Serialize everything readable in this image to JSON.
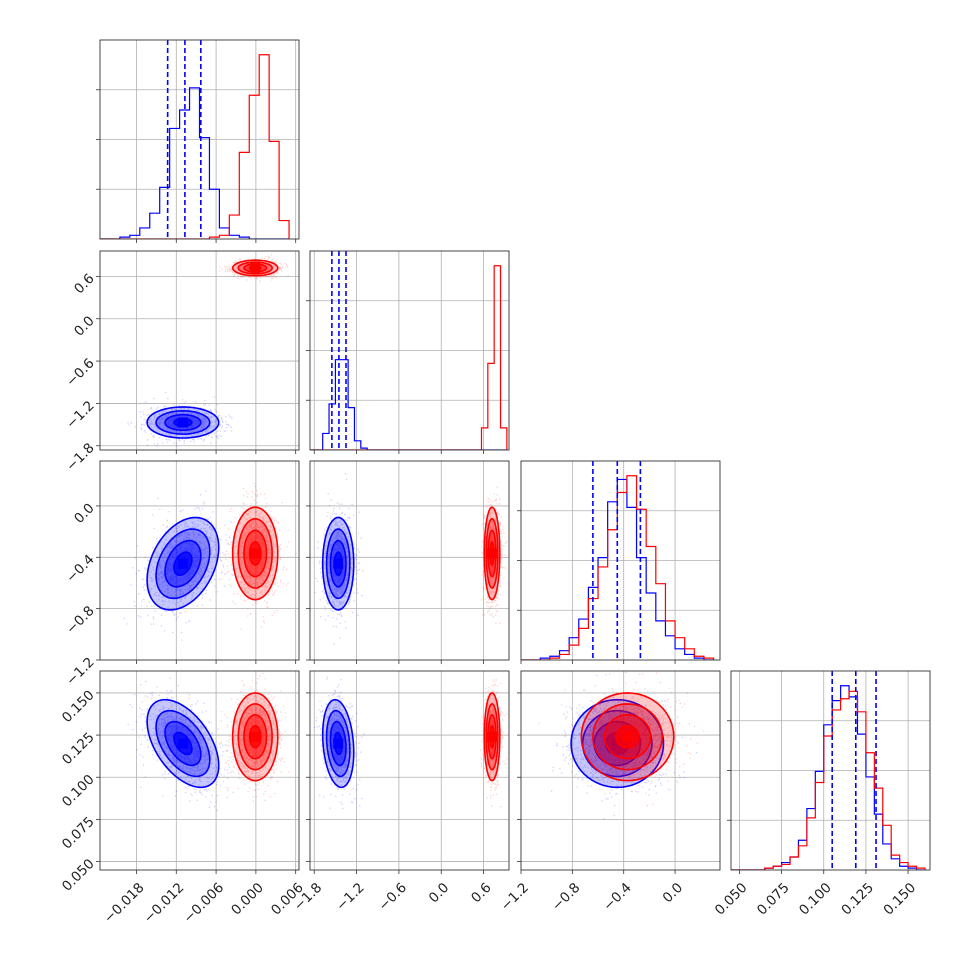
{
  "chart_data": {
    "type": "corner",
    "grid": true,
    "colors": {
      "series_a": "#0000ff",
      "series_b": "#ff0000",
      "grid": "#b0b0b0",
      "frame": "#333333"
    },
    "series": [
      {
        "color": "#0000ff"
      },
      {
        "color": "#ff0000"
      }
    ],
    "parameters": [
      {
        "range": [
          -0.0235,
          0.0065
        ],
        "ticks": [
          -0.018,
          -0.012,
          -0.006,
          0.0,
          0.006
        ],
        "tick_labels": [
          "−0.018",
          "−0.012",
          "−0.006",
          "0.000",
          "0.006"
        ]
      },
      {
        "range": [
          -1.86,
          0.96
        ],
        "ticks": [
          -1.8,
          -1.2,
          -0.6,
          0.0,
          0.6
        ],
        "tick_labels": [
          "−1.8",
          "−1.2",
          "−0.6",
          "0.0",
          "0.6"
        ]
      },
      {
        "range": [
          -1.2,
          0.35
        ],
        "ticks": [
          -1.2,
          -0.8,
          -0.4,
          0.0
        ],
        "tick_labels": [
          "−1.2",
          "−0.8",
          "−0.4",
          "0.0"
        ]
      },
      {
        "range": [
          0.045,
          0.163
        ],
        "ticks": [
          0.05,
          0.075,
          0.1,
          0.125,
          0.15
        ],
        "tick_labels": [
          "0.050",
          "0.075",
          "0.100",
          "0.125",
          "0.150"
        ]
      }
    ],
    "quantile_lines": [
      [
        -0.0133,
        -0.0107,
        -0.0083
      ],
      [
        -1.55,
        -1.45,
        -1.35
      ],
      [
        -0.64,
        -0.45,
        -0.27
      ],
      [
        0.105,
        0.119,
        0.131
      ]
    ],
    "histograms": [
      {
        "bin_edges": [
          -0.0235,
          -0.022,
          -0.0205,
          -0.019,
          -0.0175,
          -0.016,
          -0.0145,
          -0.013,
          -0.0115,
          -0.01,
          -0.0085,
          -0.007,
          -0.0055,
          -0.004,
          -0.0025,
          -0.001,
          0.0005,
          0.002,
          0.0035,
          0.005
        ],
        "series_a": [
          0,
          0,
          1,
          2,
          6,
          14,
          28,
          60,
          70,
          82,
          55,
          27,
          6,
          2,
          1,
          0,
          0,
          0,
          0
        ],
        "series_b": [
          0,
          0,
          0,
          0,
          0,
          0,
          0,
          0,
          0,
          0,
          0,
          1,
          2,
          13,
          47,
          78,
          100,
          53,
          10
        ]
      },
      {
        "bin_edges": [
          -1.86,
          -1.77,
          -1.68,
          -1.59,
          -1.5,
          -1.41,
          -1.32,
          -1.23,
          -1.14,
          -1.05,
          -0.96,
          -0.87,
          -0.78,
          -0.69,
          -0.6,
          -0.51,
          -0.42,
          -0.33,
          -0.24,
          -0.15,
          -0.06,
          0.03,
          0.12,
          0.21,
          0.3,
          0.39,
          0.48,
          0.57,
          0.66,
          0.75,
          0.84,
          0.93
        ],
        "series_a": [
          0,
          0,
          9,
          25,
          49,
          49,
          23,
          5,
          1,
          0,
          0,
          0,
          0,
          0,
          0,
          0,
          0,
          0,
          0,
          0,
          0,
          0,
          0,
          0,
          0,
          0,
          0,
          0,
          0,
          0,
          0
        ],
        "series_b": [
          0,
          0,
          0,
          0,
          0,
          0,
          0,
          0,
          0,
          0,
          0,
          0,
          0,
          0,
          0,
          0,
          0,
          0,
          0,
          0,
          0,
          0,
          0,
          0,
          0,
          0,
          0,
          12,
          47,
          100,
          12
        ]
      },
      {
        "bin_edges": [
          -1.2,
          -1.125,
          -1.05,
          -0.975,
          -0.9,
          -0.825,
          -0.75,
          -0.675,
          -0.6,
          -0.525,
          -0.45,
          -0.375,
          -0.3,
          -0.225,
          -0.15,
          -0.075,
          0.0,
          0.075,
          0.15,
          0.225,
          0.3
        ],
        "series_a": [
          0,
          0,
          1,
          2,
          5,
          12,
          22,
          39,
          55,
          85,
          97,
          82,
          55,
          36,
          21,
          13,
          6,
          3,
          1,
          0
        ],
        "series_b": [
          0,
          0,
          0,
          1,
          3,
          8,
          17,
          33,
          50,
          70,
          90,
          99,
          81,
          61,
          41,
          21,
          12,
          6,
          2,
          1
        ]
      },
      {
        "bin_edges": [
          0.045,
          0.05,
          0.055,
          0.06,
          0.065,
          0.07,
          0.075,
          0.08,
          0.085,
          0.09,
          0.095,
          0.1,
          0.105,
          0.11,
          0.115,
          0.12,
          0.125,
          0.13,
          0.135,
          0.14,
          0.145,
          0.15,
          0.155,
          0.16
        ],
        "series_a": [
          0,
          0,
          0,
          0,
          1,
          2,
          4,
          7,
          16,
          33,
          53,
          78,
          91,
          99,
          93,
          73,
          50,
          30,
          14,
          6,
          2,
          1,
          0
        ],
        "series_b": [
          0,
          0,
          0,
          0,
          1,
          2,
          3,
          7,
          13,
          28,
          47,
          72,
          86,
          92,
          96,
          85,
          63,
          44,
          24,
          8,
          4,
          2,
          1
        ]
      }
    ],
    "pair_densities": [
      {
        "row": 1,
        "col": 0,
        "series_a": {
          "mean": [
            -0.011,
            -1.47
          ],
          "sd": [
            0.0027,
            0.11
          ],
          "rho": 0.0
        },
        "series_b": {
          "mean": [
            -0.0001,
            0.72
          ],
          "sd": [
            0.0017,
            0.055
          ],
          "rho": 0.0
        }
      },
      {
        "row": 2,
        "col": 0,
        "series_a": {
          "mean": [
            -0.011,
            -0.45
          ],
          "sd": [
            0.0027,
            0.18
          ],
          "rho": 0.35
        },
        "series_b": {
          "mean": [
            -0.0001,
            -0.37
          ],
          "sd": [
            0.0017,
            0.18
          ],
          "rho": 0.0
        }
      },
      {
        "row": 2,
        "col": 1,
        "series_a": {
          "mean": [
            -1.46,
            -0.45
          ],
          "sd": [
            0.11,
            0.18
          ],
          "rho": 0.0
        },
        "series_b": {
          "mean": [
            0.72,
            -0.37
          ],
          "sd": [
            0.055,
            0.18
          ],
          "rho": 0.0
        }
      },
      {
        "row": 3,
        "col": 0,
        "series_a": {
          "mean": [
            -0.011,
            0.12
          ],
          "sd": [
            0.0027,
            0.013
          ],
          "rho": -0.5
        },
        "series_b": {
          "mean": [
            -0.0001,
            0.124
          ],
          "sd": [
            0.0017,
            0.013
          ],
          "rho": 0.0
        }
      },
      {
        "row": 3,
        "col": 1,
        "series_a": {
          "mean": [
            -1.46,
            0.12
          ],
          "sd": [
            0.11,
            0.013
          ],
          "rho": -0.2
        },
        "series_b": {
          "mean": [
            0.72,
            0.124
          ],
          "sd": [
            0.055,
            0.013
          ],
          "rho": 0.0
        }
      },
      {
        "row": 3,
        "col": 2,
        "series_a": {
          "mean": [
            -0.45,
            0.12
          ],
          "sd": [
            0.18,
            0.013
          ],
          "rho": 0.0
        },
        "series_b": {
          "mean": [
            -0.37,
            0.124
          ],
          "sd": [
            0.18,
            0.013
          ],
          "rho": 0.0
        }
      }
    ],
    "contour_levels_sigma": [
      0.5,
      1.0,
      1.5,
      2.0
    ]
  }
}
